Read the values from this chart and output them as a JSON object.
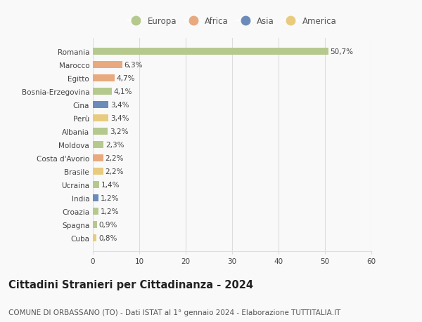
{
  "countries": [
    "Romania",
    "Marocco",
    "Egitto",
    "Bosnia-Erzegovina",
    "Cina",
    "Perù",
    "Albania",
    "Moldova",
    "Costa d'Avorio",
    "Brasile",
    "Ucraina",
    "India",
    "Croazia",
    "Spagna",
    "Cuba"
  ],
  "values": [
    50.7,
    6.3,
    4.7,
    4.1,
    3.4,
    3.4,
    3.2,
    2.3,
    2.2,
    2.2,
    1.4,
    1.2,
    1.2,
    0.9,
    0.8
  ],
  "labels": [
    "50,7%",
    "6,3%",
    "4,7%",
    "4,1%",
    "3,4%",
    "3,4%",
    "3,2%",
    "2,3%",
    "2,2%",
    "2,2%",
    "1,4%",
    "1,2%",
    "1,2%",
    "0,9%",
    "0,8%"
  ],
  "continents": [
    "Europa",
    "Africa",
    "Africa",
    "Europa",
    "Asia",
    "America",
    "Europa",
    "Europa",
    "Africa",
    "America",
    "Europa",
    "Asia",
    "Europa",
    "Europa",
    "America"
  ],
  "continent_colors": {
    "Europa": "#b5c98e",
    "Africa": "#e8a97e",
    "Asia": "#6b8cba",
    "America": "#e8cb7e"
  },
  "legend_entries": [
    {
      "label": "Europa",
      "color": "#b5c98e"
    },
    {
      "label": "Africa",
      "color": "#e8a97e"
    },
    {
      "label": "Asia",
      "color": "#6b8cba"
    },
    {
      "label": "America",
      "color": "#e8cb7e"
    }
  ],
  "title": "Cittadini Stranieri per Cittadinanza - 2024",
  "subtitle": "COMUNE DI ORBASSANO (TO) - Dati ISTAT al 1° gennaio 2024 - Elaborazione TUTTITALIA.IT",
  "xlim": [
    0,
    60
  ],
  "xticks": [
    0,
    10,
    20,
    30,
    40,
    50,
    60
  ],
  "background_color": "#f9f9f9",
  "grid_color": "#dddddd",
  "bar_height": 0.55,
  "title_fontsize": 10.5,
  "subtitle_fontsize": 7.5,
  "tick_fontsize": 7.5,
  "label_fontsize": 7.5,
  "legend_fontsize": 8.5
}
